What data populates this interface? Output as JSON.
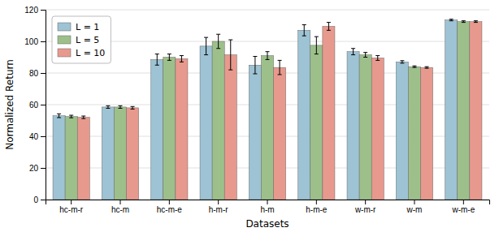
{
  "chart_data": {
    "type": "bar",
    "xlabel": "Datasets",
    "ylabel": "Normalized Return",
    "categories": [
      "hc-m-r",
      "hc-m",
      "hc-m-e",
      "h-m-r",
      "h-m",
      "h-m-e",
      "w-m-r",
      "w-m",
      "w-m-e"
    ],
    "series": [
      {
        "name": "L = 1",
        "color": "#9DC3D4",
        "values": [
          53.0,
          58.5,
          88.5,
          97.0,
          85.0,
          107.0,
          93.5,
          87.0,
          113.5
        ],
        "errors": [
          1.2,
          0.8,
          3.5,
          5.5,
          5.5,
          3.5,
          2.0,
          0.8,
          0.5
        ]
      },
      {
        "name": "L = 5",
        "color": "#9DC08B",
        "values": [
          52.5,
          58.5,
          90.0,
          100.0,
          91.0,
          97.5,
          91.5,
          84.0,
          112.5
        ],
        "errors": [
          0.8,
          0.8,
          2.0,
          4.5,
          2.5,
          5.5,
          1.5,
          0.5,
          0.5
        ]
      },
      {
        "name": "L = 10",
        "color": "#E8998D",
        "values": [
          52.0,
          58.0,
          89.0,
          91.5,
          83.5,
          109.5,
          89.5,
          83.5,
          112.5
        ],
        "errors": [
          0.8,
          0.8,
          2.0,
          9.5,
          4.5,
          2.5,
          1.5,
          0.5,
          0.5
        ]
      }
    ],
    "ylim": [
      0,
      120
    ],
    "yticks": [
      0,
      20,
      40,
      60,
      80,
      100,
      120
    ],
    "grid": true,
    "legend": "upper left"
  }
}
